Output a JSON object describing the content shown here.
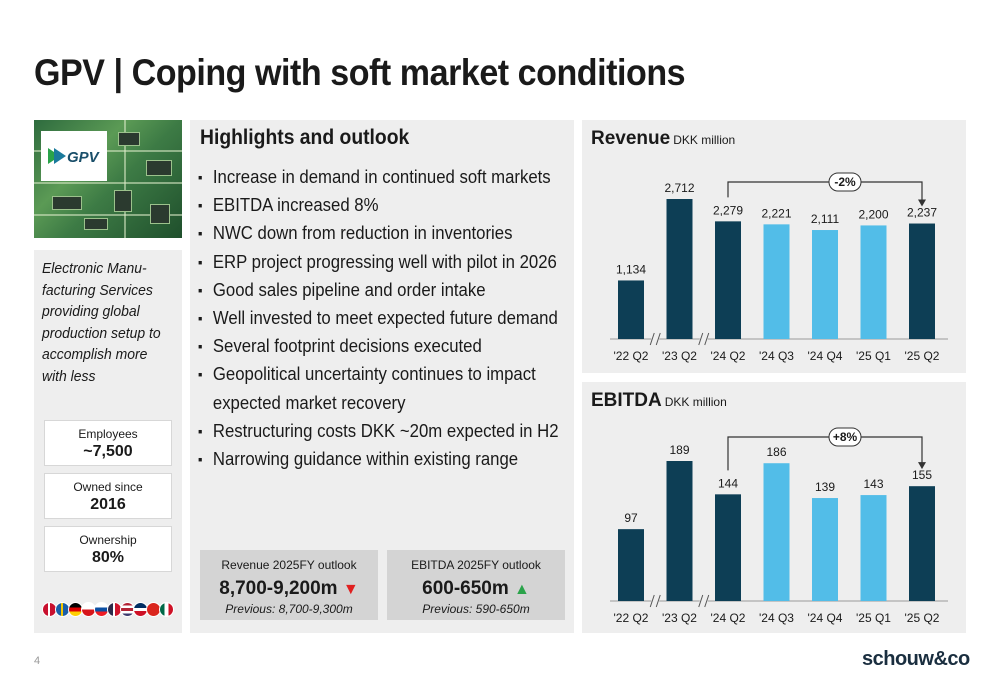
{
  "title": "GPV | Coping with soft market conditions",
  "company": {
    "logo_text": "GPV",
    "description": "Electronic Manu-facturing Services providing global production setup to accomplish more with less",
    "facts": [
      {
        "label": "Employees",
        "value": "~7,500"
      },
      {
        "label": "Owned since",
        "value": "2016"
      },
      {
        "label": "Ownership",
        "value": "80%"
      }
    ]
  },
  "highlights": {
    "title": "Highlights and outlook",
    "bullets": [
      "Increase in demand in continued soft markets",
      "EBITDA increased 8%",
      "NWC down from reduction in inventories",
      "ERP project progressing well with pilot in 2026",
      "Good sales pipeline and order intake",
      "Well invested to meet expected future demand",
      "Several footprint decisions executed",
      "Geopolitical uncertainty continues to impact expected market recovery",
      "Restructuring costs DKK ~20m expected in H2",
      "Narrowing guidance within existing range"
    ]
  },
  "outlook": [
    {
      "label": "Revenue 2025FY outlook",
      "value": "8,700-9,200m",
      "direction": "down",
      "previous": "Previous: 8,700-9,300m"
    },
    {
      "label": "EBITDA 2025FY outlook",
      "value": "600-650m",
      "direction": "up",
      "previous": "Previous: 590-650m"
    }
  ],
  "colors": {
    "dark": "#0d3e55",
    "light": "#52bde8",
    "down": "#e02020",
    "up": "#2aa34a"
  },
  "chart_data": [
    {
      "type": "bar",
      "title": "Revenue",
      "unit": "DKK million",
      "categories": [
        "'22 Q2",
        "'23 Q2",
        "'24 Q2",
        "'24 Q3",
        "'24 Q4",
        "'25 Q1",
        "'25 Q2"
      ],
      "values": [
        1134,
        2712,
        2279,
        2221,
        2111,
        2200,
        2237
      ],
      "labels": [
        "1,134",
        "2,712",
        "2,279",
        "2,221",
        "2,111",
        "2,200",
        "2,237"
      ],
      "bar_colors": [
        "dark",
        "dark",
        "dark",
        "light",
        "light",
        "light",
        "dark"
      ],
      "axis_breaks_after": [
        0,
        1
      ],
      "ylim": [
        0,
        2712
      ],
      "annotation": {
        "text": "-2%",
        "from": 2,
        "to": 6
      }
    },
    {
      "type": "bar",
      "title": "EBITDA",
      "unit": "DKK million",
      "categories": [
        "'22 Q2",
        "'23 Q2",
        "'24 Q2",
        "'24 Q3",
        "'24 Q4",
        "'25 Q1",
        "'25 Q2"
      ],
      "values": [
        97,
        189,
        144,
        186,
        139,
        143,
        155
      ],
      "labels": [
        "97",
        "189",
        "144",
        "186",
        "139",
        "143",
        "155"
      ],
      "bar_colors": [
        "dark",
        "dark",
        "dark",
        "light",
        "light",
        "light",
        "dark"
      ],
      "axis_breaks_after": [
        0,
        1
      ],
      "ylim": [
        0,
        189
      ],
      "annotation": {
        "text": "+8%",
        "from": 2,
        "to": 6
      }
    }
  ],
  "footer": {
    "page": "4",
    "brand": "schouw&co"
  }
}
